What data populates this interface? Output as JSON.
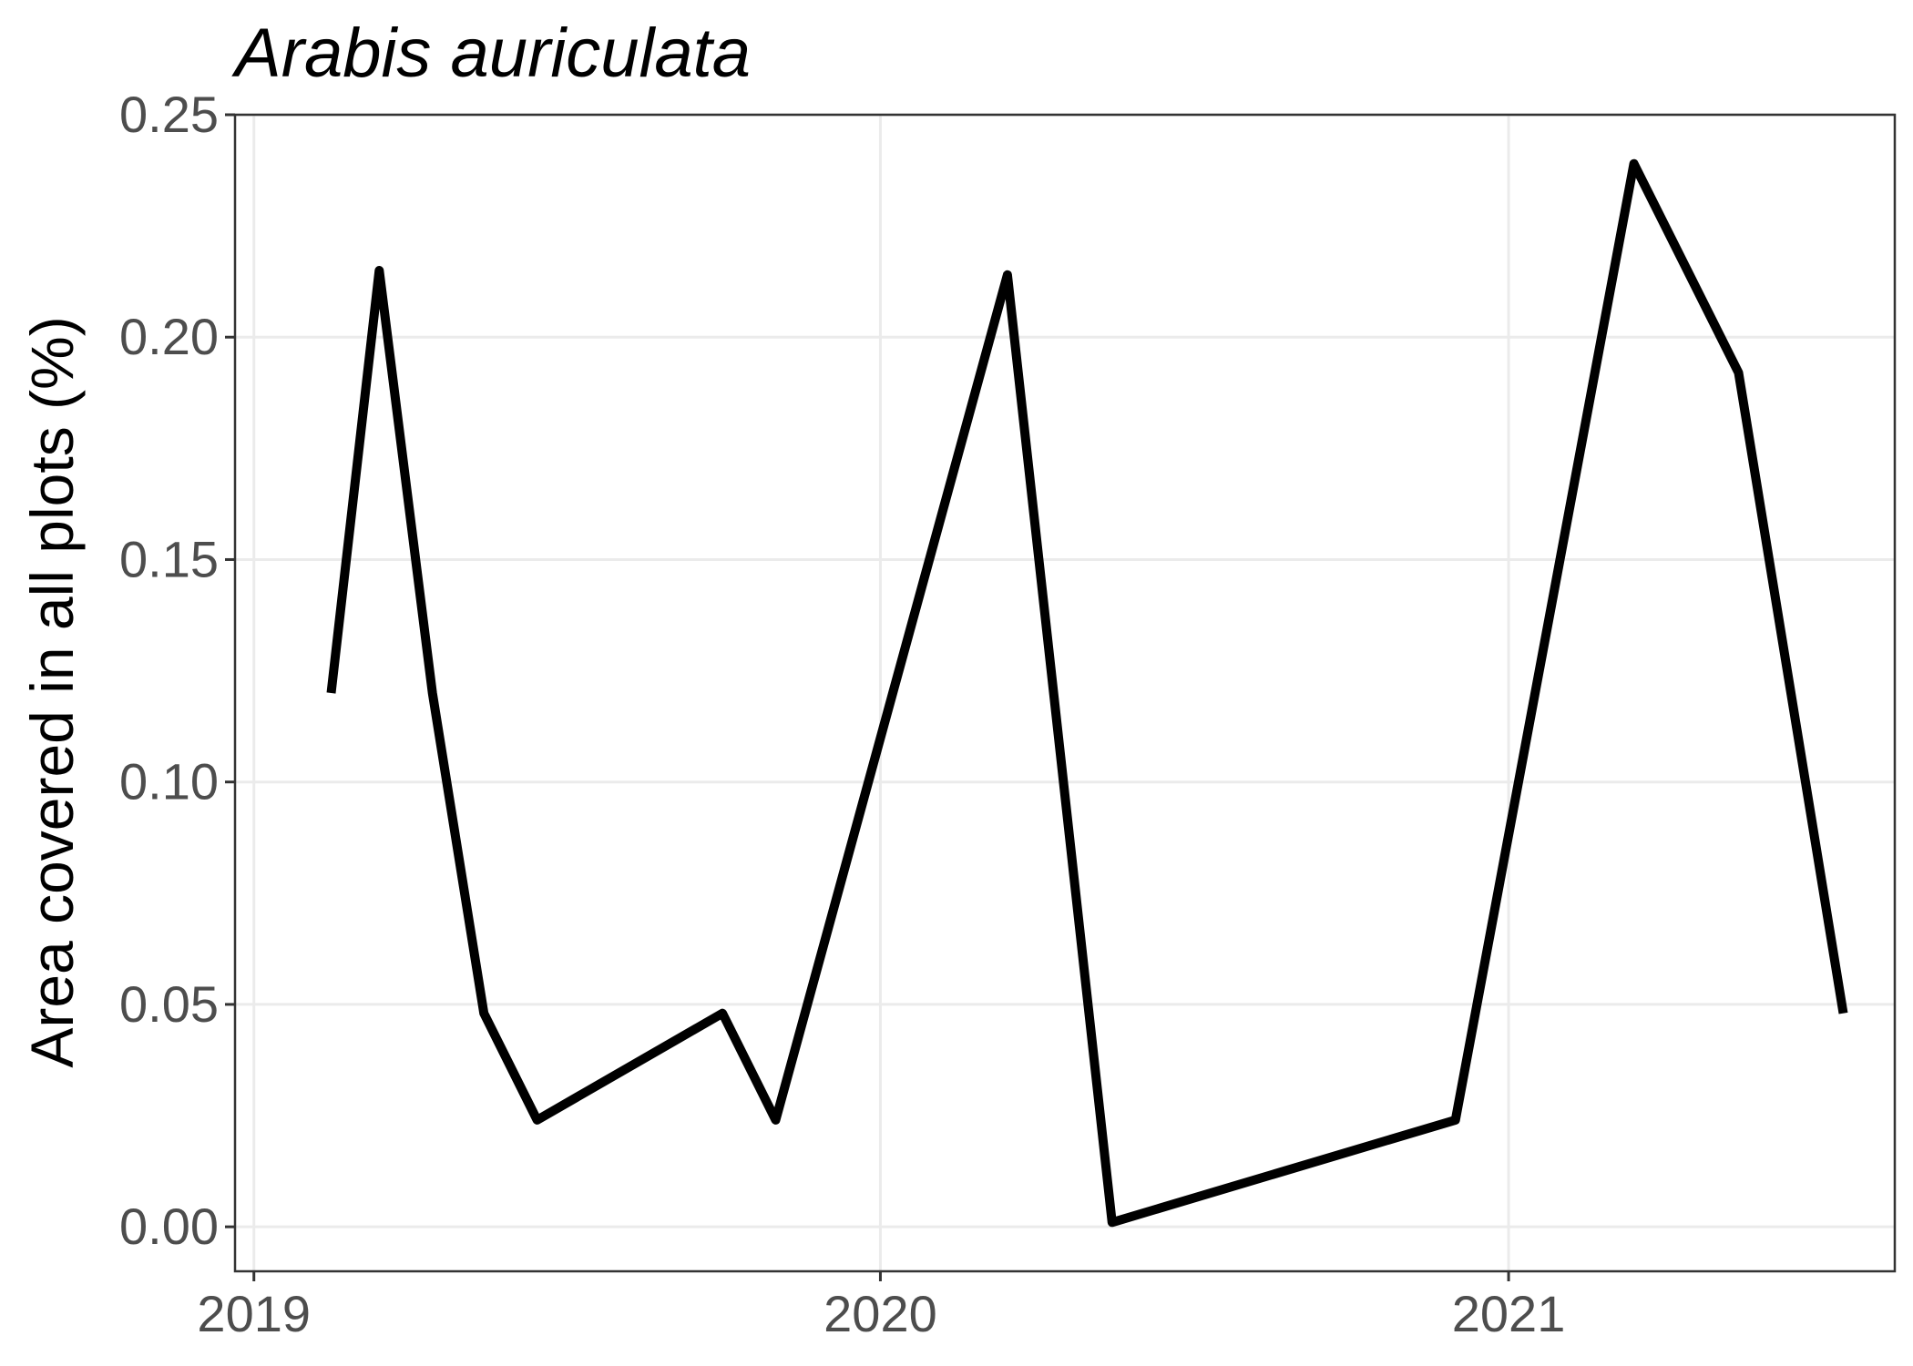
{
  "chart_data": {
    "type": "line",
    "title": "Arabis auriculata",
    "xlabel": "",
    "ylabel": "Area covered in all plots (%)",
    "x_ticks": [
      "2019",
      "2020",
      "2021"
    ],
    "y_ticks": [
      "0.00",
      "0.05",
      "0.10",
      "0.15",
      "0.20",
      "0.25"
    ],
    "xlim": [
      "2018-12-21",
      "2021-08-14"
    ],
    "ylim": [
      -0.01,
      0.25
    ],
    "grid": true,
    "legend": "none",
    "line_color": "#000000",
    "series": [
      {
        "points": [
          {
            "x": "2019-02-15",
            "y": 0.12
          },
          {
            "x": "2019-03-15",
            "y": 0.215
          },
          {
            "x": "2019-04-15",
            "y": 0.12
          },
          {
            "x": "2019-05-15",
            "y": 0.048
          },
          {
            "x": "2019-06-15",
            "y": 0.024
          },
          {
            "x": "2019-10-01",
            "y": 0.048
          },
          {
            "x": "2019-11-01",
            "y": 0.024
          },
          {
            "x": "2020-03-15",
            "y": 0.214
          },
          {
            "x": "2020-05-15",
            "y": 0.001
          },
          {
            "x": "2020-12-01",
            "y": 0.024
          },
          {
            "x": "2021-03-15",
            "y": 0.239
          },
          {
            "x": "2021-05-15",
            "y": 0.192
          },
          {
            "x": "2021-07-15",
            "y": 0.048
          }
        ]
      }
    ]
  }
}
